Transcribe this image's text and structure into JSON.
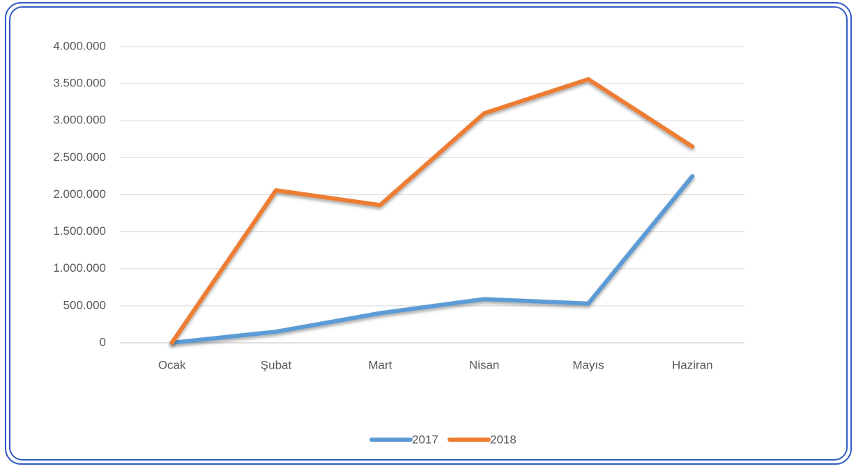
{
  "chart_data": {
    "type": "line",
    "categories": [
      "Ocak",
      "Şubat",
      "Mart",
      "Nisan",
      "Mayıs",
      "Haziran"
    ],
    "series": [
      {
        "name": "2017",
        "color": "#5b9bd5",
        "values": [
          0,
          150000,
          400000,
          590000,
          530000,
          2250000
        ]
      },
      {
        "name": "2018",
        "color": "#ed7d31",
        "values": [
          0,
          2060000,
          1860000,
          3100000,
          3560000,
          2650000
        ]
      }
    ],
    "ylim": [
      0,
      4000000
    ],
    "yticks": [
      0,
      {
        "value": 500000,
        "label": "500.000"
      },
      {
        "value": 1000000,
        "label": "1.000.000"
      },
      {
        "value": 1500000,
        "label": "1.500.000"
      },
      {
        "value": 2000000,
        "label": "2.000.000"
      },
      {
        "value": 2500000,
        "label": "2.500.000"
      },
      {
        "value": 3000000,
        "label": "3.000.000"
      },
      {
        "value": 3500000,
        "label": "3.500.000"
      },
      {
        "value": 4000000,
        "label": "4.000.000"
      }
    ],
    "grid": true,
    "legend": "bottom"
  }
}
